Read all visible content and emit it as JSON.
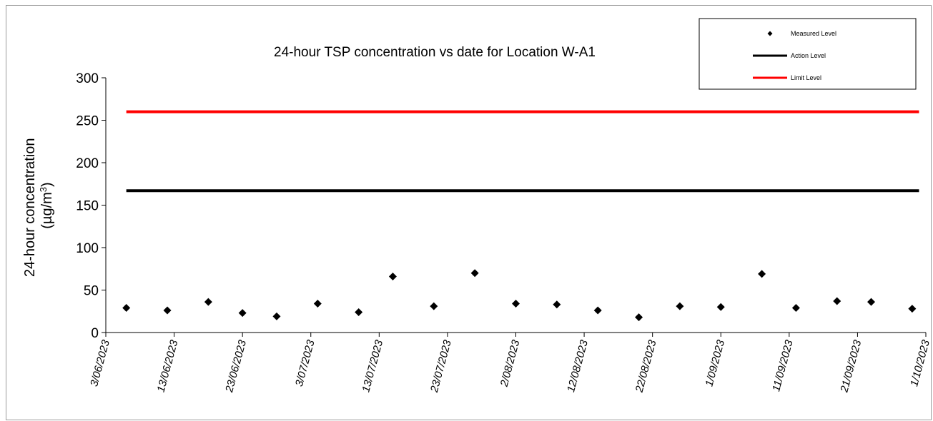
{
  "chart_data": {
    "type": "scatter",
    "title": "24-hour TSP concentration vs date for Location W-A1",
    "ylabel_line1": "24-hour concentration",
    "ylabel_line2_prefix": "(µg/m",
    "ylabel_line2_sup": "3",
    "ylabel_line2_suffix": ")",
    "ylim": [
      0,
      300
    ],
    "yticks": [
      "0",
      "50",
      "100",
      "150",
      "200",
      "250",
      "300"
    ],
    "xlim": [
      "2023-06-03",
      "2023-10-01"
    ],
    "xticks": [
      {
        "date": "2023-06-03",
        "label": "3/06/2023"
      },
      {
        "date": "2023-06-13",
        "label": "13/06/2023"
      },
      {
        "date": "2023-06-23",
        "label": "23/06/2023"
      },
      {
        "date": "2023-07-03",
        "label": "3/07/2023"
      },
      {
        "date": "2023-07-13",
        "label": "13/07/2023"
      },
      {
        "date": "2023-07-23",
        "label": "23/07/2023"
      },
      {
        "date": "2023-08-02",
        "label": "2/08/2023"
      },
      {
        "date": "2023-08-12",
        "label": "12/08/2023"
      },
      {
        "date": "2023-08-22",
        "label": "22/08/2023"
      },
      {
        "date": "2023-09-01",
        "label": "1/09/2023"
      },
      {
        "date": "2023-09-11",
        "label": "11/09/2023"
      },
      {
        "date": "2023-09-21",
        "label": "21/09/2023"
      },
      {
        "date": "2023-10-01",
        "label": "1/10/2023"
      }
    ],
    "series": [
      {
        "name": "Measured Level",
        "kind": "points",
        "color": "#000000",
        "x": [
          "2023-06-06",
          "2023-06-12",
          "2023-06-18",
          "2023-06-23",
          "2023-06-28",
          "2023-07-04",
          "2023-07-10",
          "2023-07-15",
          "2023-07-21",
          "2023-07-27",
          "2023-08-02",
          "2023-08-08",
          "2023-08-14",
          "2023-08-20",
          "2023-08-26",
          "2023-09-01",
          "2023-09-07",
          "2023-09-12",
          "2023-09-18",
          "2023-09-23",
          "2023-09-29"
        ],
        "y": [
          29,
          26,
          36,
          23,
          19,
          34,
          24,
          66,
          31,
          70,
          34,
          33,
          26,
          18,
          31,
          30,
          69,
          29,
          37,
          36,
          28
        ]
      },
      {
        "name": "Action Level",
        "kind": "line",
        "color": "#000000",
        "x": [
          "2023-06-06",
          "2023-09-30"
        ],
        "y": [
          167,
          167
        ]
      },
      {
        "name": "Limit Level",
        "kind": "line",
        "color": "#ff0000",
        "x": [
          "2023-06-06",
          "2023-09-30"
        ],
        "y": [
          260,
          260
        ]
      }
    ],
    "grid": false,
    "legend_position": "top-right"
  }
}
